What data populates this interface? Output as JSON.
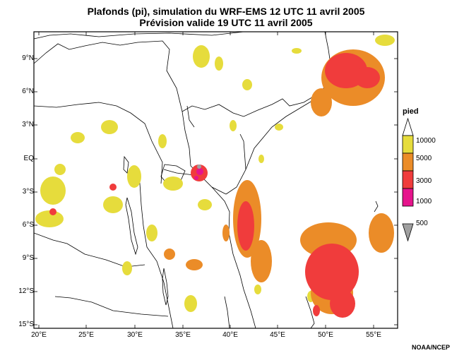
{
  "title": {
    "line1": "Plafonds (pi), simulation du WRF-EMS 12 UTC 11 avril 2005",
    "line2": "Prévision valide 19 UTC 11 avril 2005"
  },
  "lat_labels": [
    "9°N",
    "6°N",
    "3°N",
    "EQ",
    "3°S",
    "6°S",
    "9°S",
    "12°S",
    "15°S"
  ],
  "lon_labels": [
    "20°E",
    "25°E",
    "30°E",
    "35°E",
    "40°E",
    "45°E",
    "50°E",
    "55°E"
  ],
  "legend": {
    "title": "pied",
    "items": [
      {
        "label": "10000",
        "color": "#e6dc3c"
      },
      {
        "label": "5000",
        "color": "#eb8c28"
      },
      {
        "label": "3000",
        "color": "#f03c3c"
      },
      {
        "label": "1000",
        "color": "#e6148c"
      },
      {
        "label": "500",
        "color": "#a0a0a0"
      }
    ]
  },
  "credit": "NOAA/NCEP"
}
